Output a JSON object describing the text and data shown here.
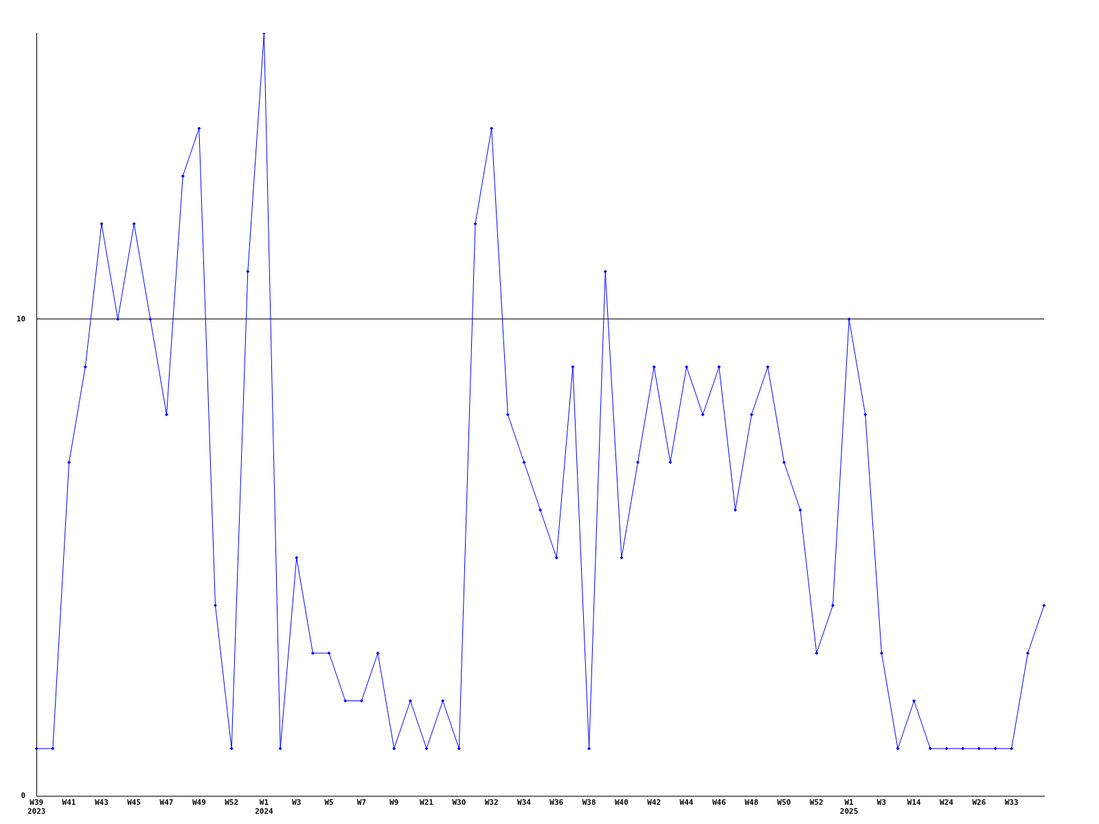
{
  "chart_data": {
    "type": "line",
    "categories": [
      "W39\n2023",
      null,
      "W41",
      null,
      "W43",
      null,
      "W45",
      null,
      "W47",
      null,
      "W49",
      null,
      "W52",
      null,
      "W1\n2024",
      null,
      "W3",
      null,
      "W5",
      null,
      "W7",
      null,
      "W9",
      null,
      "W21",
      null,
      "W30",
      null,
      "W32",
      null,
      "W34",
      null,
      "W36",
      null,
      "W38",
      null,
      "W40",
      null,
      "W42",
      null,
      "W44",
      null,
      "W46",
      null,
      "W48",
      null,
      "W50",
      null,
      "W52",
      null,
      "W1\n2025",
      null,
      "W3",
      null,
      "W14",
      null,
      "W24",
      null,
      "W26",
      null,
      "W33",
      null,
      null
    ],
    "series": [
      {
        "color": "#0000ff",
        "values": [
          1,
          1,
          7,
          9,
          12,
          10,
          12,
          10,
          8,
          13,
          14,
          4,
          1,
          11,
          16,
          1,
          5,
          3,
          3,
          2,
          2,
          3,
          1,
          2,
          1,
          2,
          1,
          12,
          14,
          8,
          7,
          6,
          5,
          9,
          1,
          11,
          5,
          7,
          9,
          7,
          9,
          8,
          9,
          6,
          8,
          9,
          7,
          6,
          3,
          4,
          10,
          8,
          3,
          1,
          2,
          1,
          1,
          1,
          1,
          1,
          1,
          3,
          4
        ]
      }
    ],
    "ylim": [
      0,
      16
    ],
    "yticks": [
      0,
      10
    ],
    "grid": "y",
    "marker": "diamond",
    "line_style": "solid",
    "legend": false
  }
}
